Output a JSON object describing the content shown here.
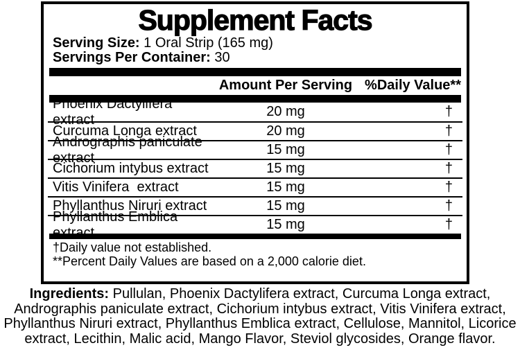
{
  "label": {
    "title": "Supplement Facts",
    "serving_size": {
      "label": "Serving Size:",
      "value": "1 Oral Strip (165 mg)"
    },
    "servings_per_container": {
      "label": "Servings Per Container:",
      "value": "30"
    },
    "columns": {
      "amount": "Amount Per Serving",
      "daily_value": "%Daily Value**"
    },
    "rows": [
      {
        "name": "Phoenix Dactylifera extract",
        "amount": "20 mg",
        "daily_value": "†"
      },
      {
        "name": "Curcuma Longa extract",
        "amount": "20 mg",
        "daily_value": "†"
      },
      {
        "name": "Andrographis paniculate extract",
        "amount": "15 mg",
        "daily_value": "†"
      },
      {
        "name": "Cichorium intybus extract",
        "amount": "15 mg",
        "daily_value": "†"
      },
      {
        "name": "Vitis Vinifera  extract",
        "amount": "15 mg",
        "daily_value": "†"
      },
      {
        "name": "Phyllanthus Niruri extract",
        "amount": "15 mg",
        "daily_value": "†"
      },
      {
        "name": "Phyllanthus Emblica extract",
        "amount": "15 mg",
        "daily_value": "†"
      }
    ],
    "footnotes": [
      "†Daily value not established.",
      "**Percent Daily Values are based on a 2,000 calorie diet."
    ]
  },
  "ingredients": {
    "label": "Ingredients:",
    "text": "Pullulan, Phoenix Dactylifera extract, Curcuma Longa extract, Andrographis paniculate extract, Cichorium intybus extract, Vitis Vinifera extract, Phyllanthus Niruri extract, Phyllanthus Emblica extract, Cellulose, Mannitol, Licorice extract, Lecithin, Malic acid, Mango Flavor, Steviol glycosides, Orange flavor."
  },
  "colors": {
    "text": "#000000",
    "background": "#ffffff",
    "rule": "#000000"
  }
}
